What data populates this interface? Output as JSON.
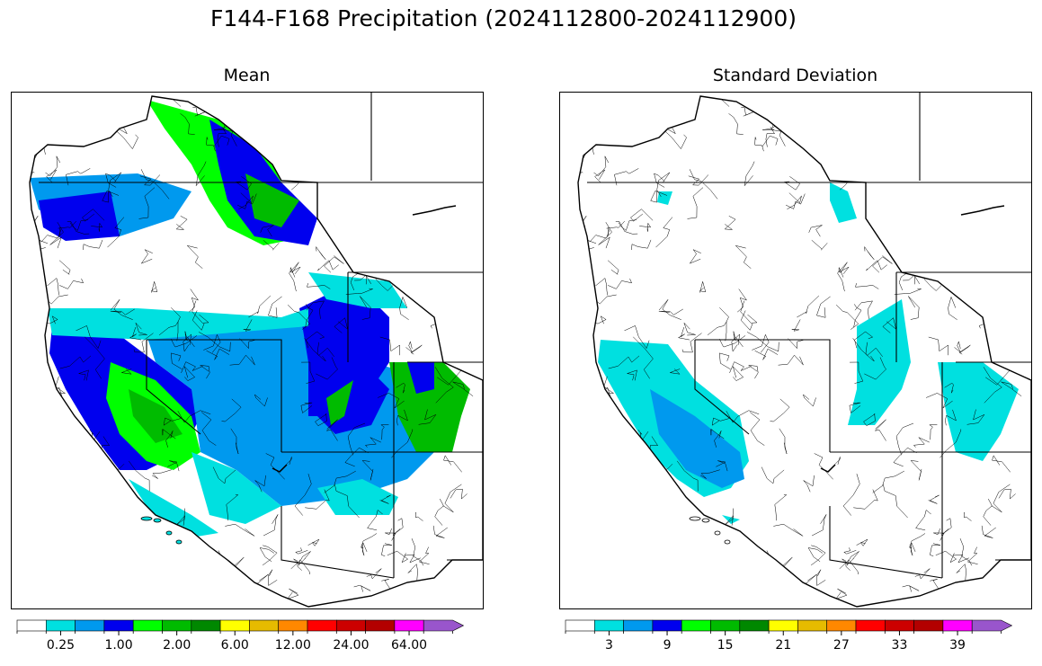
{
  "figure": {
    "title": "F144-F168 Precipitation (2024112800-2024112900)"
  },
  "panels": [
    {
      "title": "Mean",
      "colorbar": {
        "colors": [
          "#ffffff",
          "#00e0e0",
          "#0099ee",
          "#0000ee",
          "#00ff00",
          "#00bb00",
          "#008800",
          "#ffff00",
          "#e6bb00",
          "#ff8800",
          "#ff0000",
          "#cc0000",
          "#b30000",
          "#ff00ff",
          "#9955cc"
        ],
        "tick_labels": [
          "0.25",
          "1.00",
          "2.00",
          "6.00",
          "12.00",
          "24.00",
          "64.00"
        ],
        "tick_boundaries": [
          1,
          3,
          5,
          7,
          9,
          11,
          13
        ]
      }
    },
    {
      "title": "Standard Deviation",
      "colorbar": {
        "colors": [
          "#ffffff",
          "#00e0e0",
          "#0099ee",
          "#0000ee",
          "#00ff00",
          "#00bb00",
          "#008800",
          "#ffff00",
          "#e6bb00",
          "#ff8800",
          "#ff0000",
          "#cc0000",
          "#b30000",
          "#ff00ff",
          "#9955cc"
        ],
        "tick_labels": [
          "3",
          "9",
          "15",
          "21",
          "27",
          "33",
          "39"
        ],
        "tick_boundaries": [
          1,
          3,
          5,
          7,
          9,
          11,
          13
        ]
      }
    }
  ]
}
